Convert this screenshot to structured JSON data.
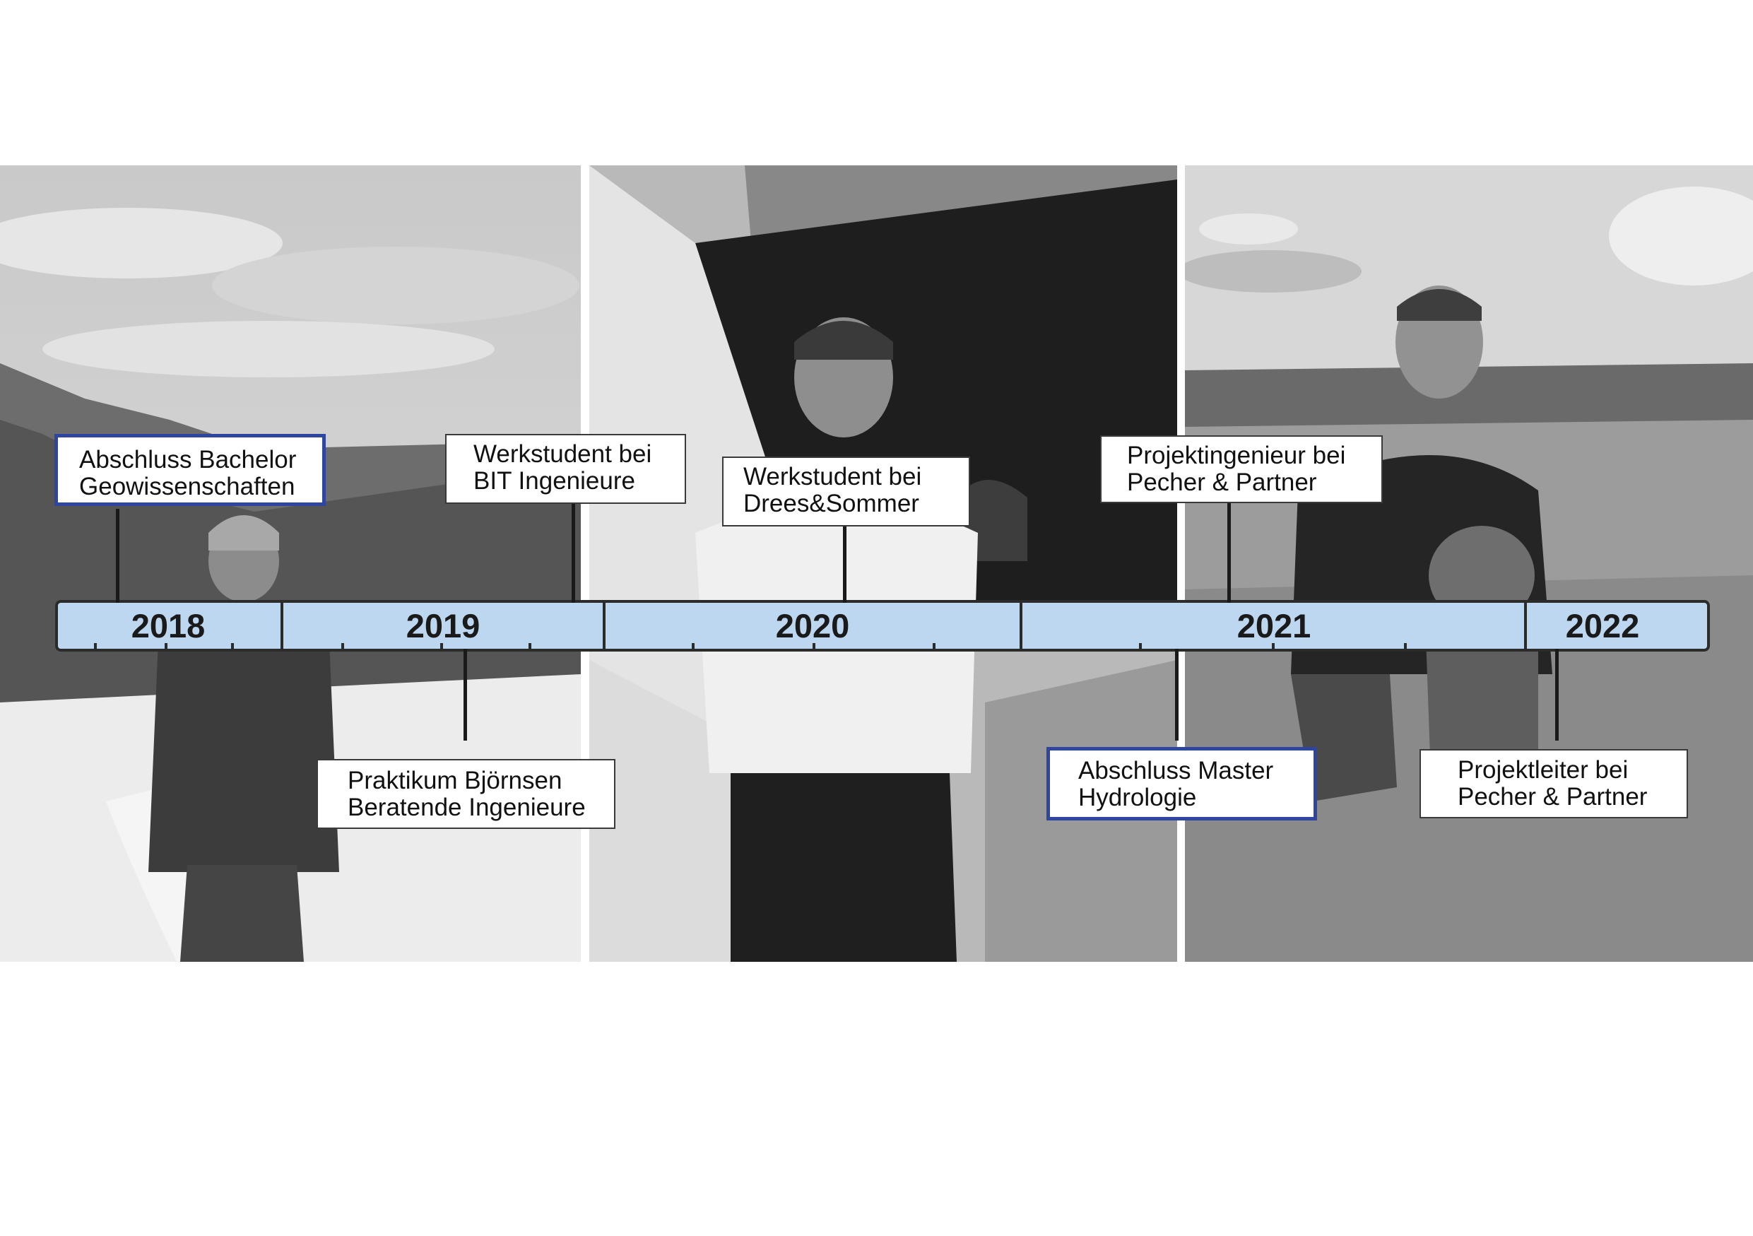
{
  "colors": {
    "bar_fill": "#bcd7ef",
    "bar_border": "#2b2b2b",
    "milestone_border": "#2f46a0",
    "event_border": "#3a3a3a",
    "photo_tone": "grayscale"
  },
  "timeline": {
    "years": [
      {
        "label": "2018"
      },
      {
        "label": "2019"
      },
      {
        "label": "2020"
      },
      {
        "label": "2021"
      },
      {
        "label": "2022"
      }
    ]
  },
  "events": [
    {
      "line1": "Abschluss Bachelor",
      "line2": "Geowissenschaften",
      "kind": "milestone"
    },
    {
      "line1": "Werkstudent bei",
      "line2": "BIT Ingenieure",
      "kind": "job"
    },
    {
      "line1": "Praktikum Björnsen",
      "line2": "Beratende Ingenieure",
      "kind": "job"
    },
    {
      "line1": "Werkstudent bei",
      "line2": "Drees&Sommer",
      "kind": "job"
    },
    {
      "line1": "Projektingenieur bei",
      "line2": "Pecher & Partner",
      "kind": "job"
    },
    {
      "line1": "Abschluss Master",
      "line2": "Hydrologie",
      "kind": "milestone"
    },
    {
      "line1": "Projektleiter bei",
      "line2": "Pecher & Partner",
      "kind": "job"
    }
  ],
  "photos": [
    {
      "subject": "winter-landscape-portrait"
    },
    {
      "subject": "indoor-portrait-window"
    },
    {
      "subject": "meadow-portrait-with-dog"
    }
  ]
}
